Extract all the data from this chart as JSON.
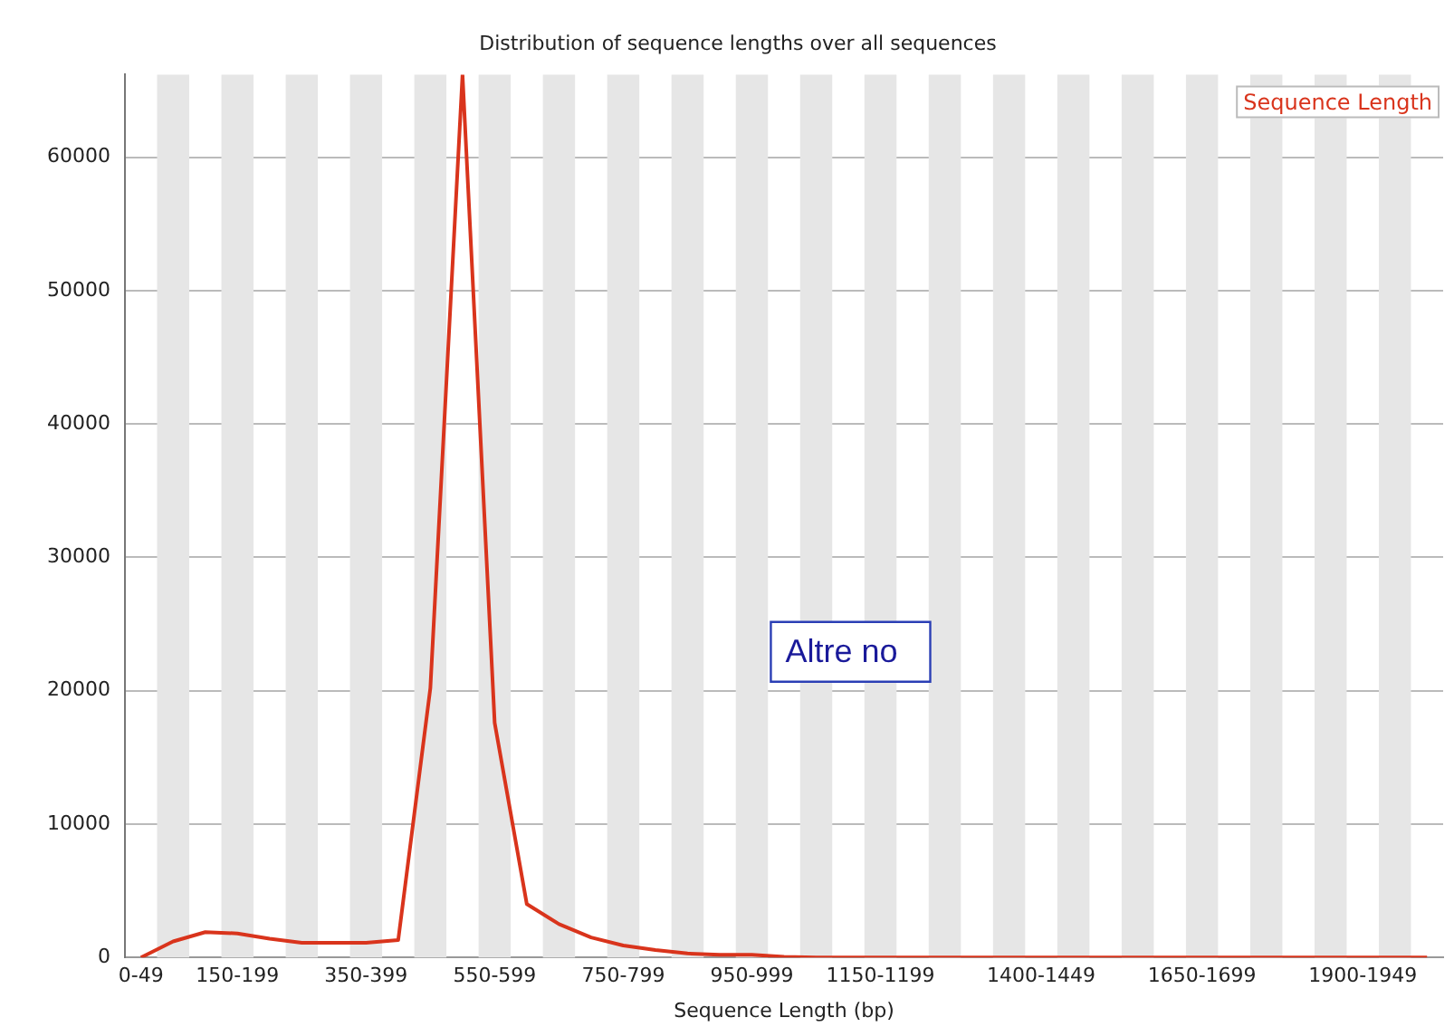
{
  "chart_data": {
    "type": "line",
    "title": "Distribution of sequence lengths over all sequences",
    "xlabel": "Sequence Length (bp)",
    "categories": [
      "0-49",
      null,
      null,
      "150-199",
      null,
      null,
      null,
      "350-399",
      null,
      null,
      null,
      "550-599",
      null,
      null,
      null,
      "750-799",
      null,
      null,
      null,
      "950-999",
      null,
      null,
      null,
      "1150-1199",
      null,
      null,
      null,
      null,
      "1400-1449",
      null,
      null,
      null,
      null,
      "1650-1699",
      null,
      null,
      null,
      null,
      "1900-1949",
      null,
      null
    ],
    "series": [
      {
        "name": "Sequence Length",
        "color": "#d9341c",
        "values": [
          0,
          1200,
          1900,
          1800,
          1400,
          1100,
          1100,
          1100,
          1300,
          20200,
          66200,
          17600,
          4000,
          2500,
          1500,
          900,
          550,
          300,
          200,
          200,
          50,
          0,
          0,
          0,
          0,
          0,
          0,
          0,
          0,
          0,
          0,
          0,
          0,
          0,
          0,
          0,
          0,
          0,
          0,
          0,
          0
        ]
      }
    ],
    "ylim": [
      0,
      66200
    ],
    "yticks": [
      0,
      10000,
      20000,
      30000,
      40000,
      50000,
      60000
    ],
    "grid": "y",
    "legend": "top right",
    "marker": "none",
    "annotations": [
      "Altre no"
    ]
  }
}
